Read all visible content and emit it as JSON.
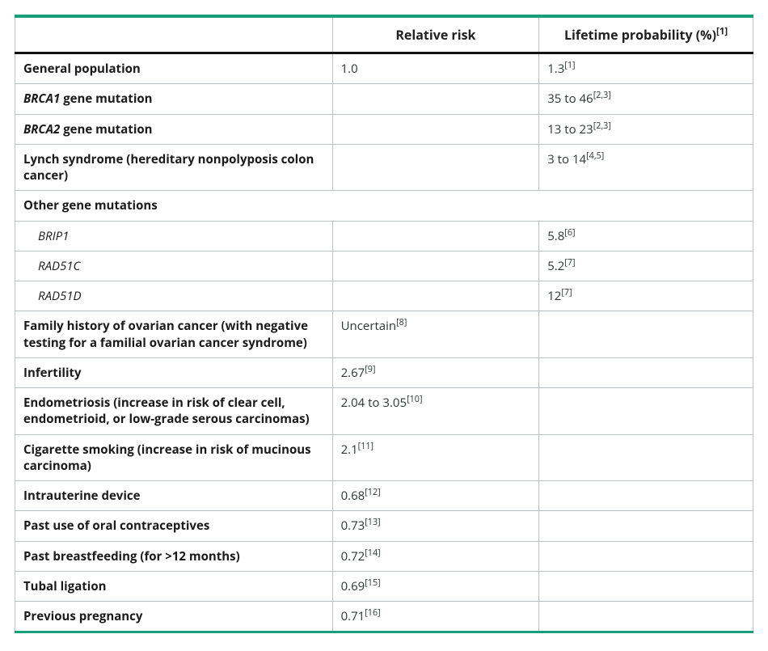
{
  "style": {
    "accent_color": "#1a9e7a",
    "cell_border_color": "#b9bfc3",
    "header_bottom_color": "#111111",
    "background_color": "#ffffff",
    "body_font_size": 15,
    "header_font_size": 16,
    "col_widths_pct": [
      43,
      28,
      29
    ]
  },
  "headers": {
    "factor": "",
    "relative_risk": "Relative risk",
    "lifetime_prob": "Lifetime probability (%)",
    "lifetime_prob_ref": "[1]"
  },
  "rows": [
    {
      "type": "data",
      "factor": "General population",
      "factor_html": "General population",
      "rr": "1.0",
      "rr_ref": "",
      "lp": "1.3",
      "lp_ref": "[1]"
    },
    {
      "type": "data",
      "factor": "BRCA1 gene mutation",
      "factor_html": "<span class=\"gene\">BRCA1</span> gene mutation",
      "rr": "",
      "rr_ref": "",
      "lp": "35 to 46",
      "lp_ref": "[2,3]"
    },
    {
      "type": "data",
      "factor": "BRCA2 gene mutation",
      "factor_html": "<span class=\"gene\">BRCA2</span> gene mutation",
      "rr": "",
      "rr_ref": "",
      "lp": "13 to 23",
      "lp_ref": "[2,3]"
    },
    {
      "type": "data",
      "factor": "Lynch syndrome (hereditary nonpolyposis colon cancer)",
      "factor_html": "Lynch syndrome (hereditary nonpolyposis colon cancer)",
      "rr": "",
      "rr_ref": "",
      "lp": "3 to 14",
      "lp_ref": "[4,5]"
    },
    {
      "type": "section",
      "factor": "Other gene mutations",
      "factor_html": "Other gene mutations"
    },
    {
      "type": "indent",
      "factor": "BRIP1",
      "factor_html": "BRIP1",
      "rr": "",
      "rr_ref": "",
      "lp": "5.8",
      "lp_ref": "[6]"
    },
    {
      "type": "indent",
      "factor": "RAD51C",
      "factor_html": "RAD51C",
      "rr": "",
      "rr_ref": "",
      "lp": "5.2",
      "lp_ref": "[7]"
    },
    {
      "type": "indent",
      "factor": "RAD51D",
      "factor_html": "RAD51D",
      "rr": "",
      "rr_ref": "",
      "lp": "12",
      "lp_ref": "[7]"
    },
    {
      "type": "data",
      "factor": "Family history of ovarian cancer (with negative testing for a familial ovarian cancer syndrome)",
      "factor_html": "Family history of ovarian cancer (with negative testing for a familial ovarian cancer syndrome)",
      "rr": "Uncertain",
      "rr_ref": "[8]",
      "lp": "",
      "lp_ref": ""
    },
    {
      "type": "data",
      "factor": "Infertility",
      "factor_html": "Infertility",
      "rr": "2.67",
      "rr_ref": "[9]",
      "lp": "",
      "lp_ref": ""
    },
    {
      "type": "data",
      "factor": "Endometriosis (increase in risk of clear cell, endometrioid, or low-grade serous carcinomas)",
      "factor_html": "Endometriosis (increase in risk of clear cell, endometrioid, or low-grade serous carcinomas)",
      "rr": "2.04 to 3.05",
      "rr_ref": "[10]",
      "lp": "",
      "lp_ref": ""
    },
    {
      "type": "data",
      "factor": "Cigarette smoking (increase in risk of mucinous carcinoma)",
      "factor_html": "Cigarette smoking (increase in risk of mucinous carcinoma)",
      "rr": "2.1",
      "rr_ref": "[11]",
      "lp": "",
      "lp_ref": ""
    },
    {
      "type": "data",
      "factor": "Intrauterine device",
      "factor_html": "Intrauterine device",
      "rr": "0.68",
      "rr_ref": "[12]",
      "lp": "",
      "lp_ref": ""
    },
    {
      "type": "data",
      "factor": "Past use of oral contraceptives",
      "factor_html": "Past use of oral contraceptives",
      "rr": "0.73",
      "rr_ref": "[13]",
      "lp": "",
      "lp_ref": ""
    },
    {
      "type": "data",
      "factor": "Past breastfeeding (for >12 months)",
      "factor_html": "Past breastfeeding (for >12 months)",
      "rr": "0.72",
      "rr_ref": "[14]",
      "lp": "",
      "lp_ref": ""
    },
    {
      "type": "data",
      "factor": "Tubal ligation",
      "factor_html": "Tubal ligation",
      "rr": "0.69",
      "rr_ref": "[15]",
      "lp": "",
      "lp_ref": ""
    },
    {
      "type": "data",
      "factor": "Previous pregnancy",
      "factor_html": "Previous pregnancy",
      "rr": "0.71",
      "rr_ref": "[16]",
      "lp": "",
      "lp_ref": ""
    }
  ]
}
